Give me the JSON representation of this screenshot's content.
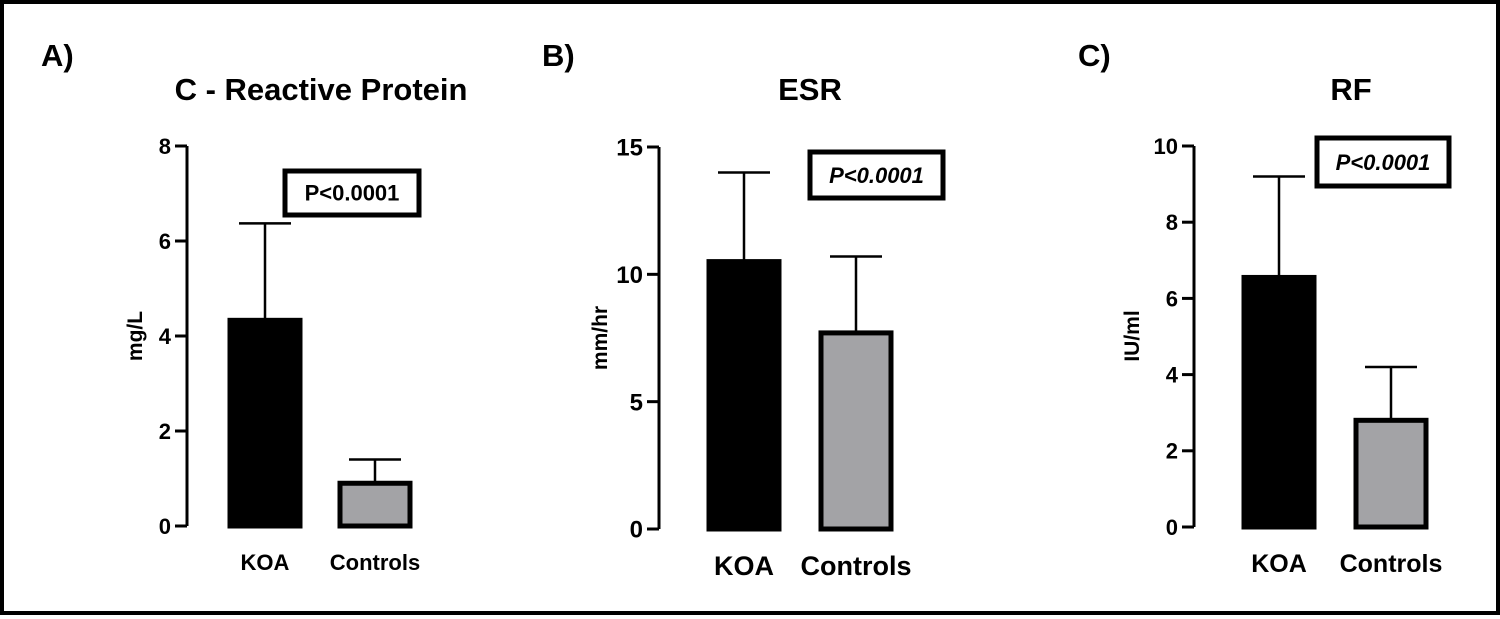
{
  "chart_data": [
    {
      "panel_label": "A)",
      "type": "bar",
      "title": "C - Reactive Protein",
      "ylabel": "mg/L",
      "categories": [
        "KOA",
        "Controls"
      ],
      "values": [
        4.33,
        0.9
      ],
      "error_upper": [
        6.37,
        1.4
      ],
      "ylim": [
        0,
        8
      ],
      "yticks": [
        0,
        2,
        4,
        6,
        8
      ],
      "colors": [
        "#000000",
        "#a3a3a6"
      ],
      "annotation": "P<0.0001",
      "annotation_italic": false
    },
    {
      "panel_label": "B)",
      "type": "bar",
      "title": "ESR",
      "ylabel": "mm/hr",
      "categories": [
        "KOA",
        "Controls"
      ],
      "values": [
        10.5,
        7.7
      ],
      "error_upper": [
        14.0,
        10.7
      ],
      "ylim": [
        0,
        15
      ],
      "yticks": [
        0,
        5,
        10,
        15
      ],
      "colors": [
        "#000000",
        "#a3a3a6"
      ],
      "annotation": "P<0.0001",
      "annotation_italic": true
    },
    {
      "panel_label": "C)",
      "type": "bar",
      "title": "RF",
      "ylabel": "IU/ml",
      "categories": [
        "KOA",
        "Controls"
      ],
      "values": [
        6.55,
        2.8
      ],
      "error_upper": [
        9.2,
        4.2
      ],
      "ylim": [
        0,
        10
      ],
      "yticks": [
        0,
        2,
        4,
        6,
        8,
        10
      ],
      "colors": [
        "#000000",
        "#a3a3a6"
      ],
      "annotation": "P<0.0001",
      "annotation_italic": true
    }
  ]
}
